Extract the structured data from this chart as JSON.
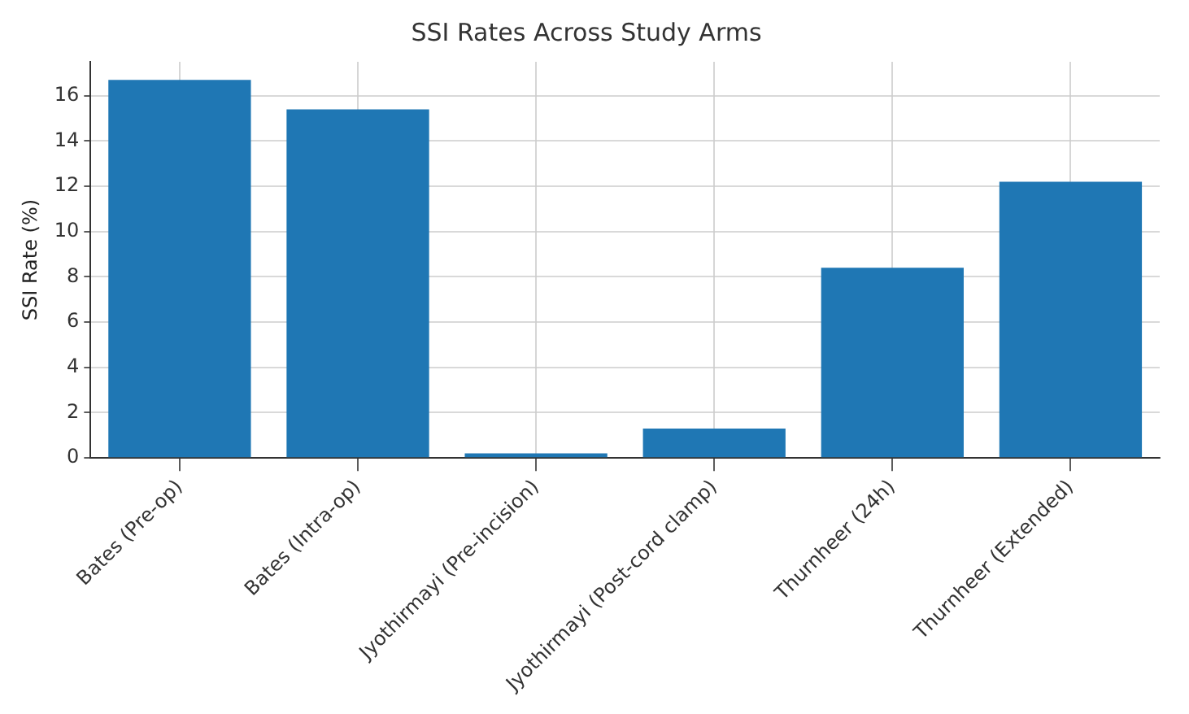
{
  "chart_data": {
    "type": "bar",
    "title": "SSI Rates Across Study Arms",
    "ylabel": "SSI Rate (%)",
    "categories": [
      "Bates (Pre-op)",
      "Bates (Intra-op)",
      "Jyothirmayi (Pre-incision)",
      "Jyothirmayi (Post-cord clamp)",
      "Thurnheer (24h)",
      "Thurnheer (Extended)"
    ],
    "values": [
      16.7,
      15.4,
      0.2,
      1.3,
      8.4,
      12.2
    ],
    "color": "#1f77b4",
    "ylim": [
      0,
      17.5
    ],
    "yticks": [
      0,
      2,
      4,
      6,
      8,
      10,
      12,
      14,
      16
    ],
    "grid": true
  }
}
